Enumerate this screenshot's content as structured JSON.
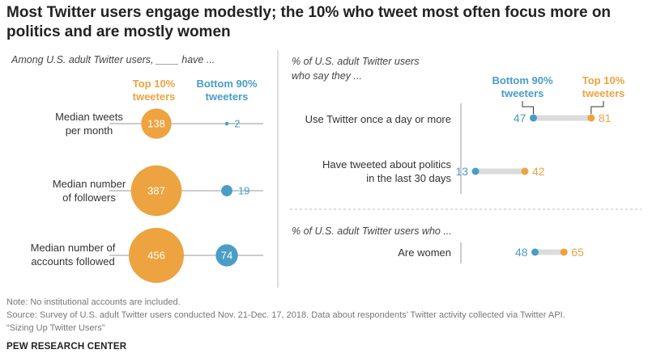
{
  "title": "Most Twitter users engage modestly; the 10% who tweet most often focus more on politics and are mostly women",
  "colors": {
    "top": "#EDA340",
    "bottom": "#4A9DC6",
    "track": "#DCDCDC",
    "axis": "#9A9A9A",
    "note": "#777777"
  },
  "left_panel": {
    "subtitle": "Among U.S. adult Twitter users, ____ have ...",
    "col_top": [
      "Top 10%",
      "tweeters"
    ],
    "col_bottom": [
      "Bottom 90%",
      "tweeters"
    ],
    "rows": [
      {
        "label": [
          "Median tweets",
          "per month"
        ],
        "top": 138,
        "bottom": 2
      },
      {
        "label": [
          "Median number",
          "of followers"
        ],
        "top": 387,
        "bottom": 19
      },
      {
        "label": [
          "Median number of",
          "accounts followed"
        ],
        "top": 456,
        "bottom": 74
      }
    ]
  },
  "right_panel": {
    "subtitle": [
      "% of U.S. adult Twitter users",
      "who say they ..."
    ],
    "legend_bottom": [
      "Bottom 90%",
      "tweeters"
    ],
    "legend_top": [
      "Top 10%",
      "tweeters"
    ],
    "rows": [
      {
        "label": [
          "Use Twitter once a day or more"
        ],
        "bottom": 47,
        "top": 81
      },
      {
        "label": [
          "Have tweeted about politics",
          "in the last 30 days"
        ],
        "bottom": 13,
        "top": 42
      }
    ],
    "subtitle2": "% of U.S. adult Twitter users who ...",
    "rows2": [
      {
        "label": [
          "Are women"
        ],
        "bottom": 48,
        "top": 65
      }
    ]
  },
  "chart_data": [
    {
      "type": "scatter",
      "title": "Among U.S. adult Twitter users, ____ have ...",
      "categories": [
        "Median tweets per month",
        "Median number of followers",
        "Median number of accounts followed"
      ],
      "series": [
        {
          "name": "Top 10% tweeters",
          "values": [
            138,
            387,
            456
          ]
        },
        {
          "name": "Bottom 90% tweeters",
          "values": [
            2,
            19,
            74
          ]
        }
      ]
    },
    {
      "type": "scatter",
      "title": "% of U.S. adult Twitter users who say they ...",
      "categories": [
        "Use Twitter once a day or more",
        "Have tweeted about politics in the last 30 days"
      ],
      "series": [
        {
          "name": "Bottom 90% tweeters",
          "values": [
            47,
            13
          ]
        },
        {
          "name": "Top 10% tweeters",
          "values": [
            81,
            42
          ]
        }
      ],
      "xlim": [
        0,
        100
      ]
    },
    {
      "type": "scatter",
      "title": "% of U.S. adult Twitter users who ...",
      "categories": [
        "Are women"
      ],
      "series": [
        {
          "name": "Bottom 90% tweeters",
          "values": [
            48
          ]
        },
        {
          "name": "Top 10% tweeters",
          "values": [
            65
          ]
        }
      ],
      "xlim": [
        0,
        100
      ]
    }
  ],
  "footer": {
    "note": "Note: No institutional accounts are included.",
    "source": "Source: Survey of U.S. adult Twitter users conducted Nov. 21-Dec. 17, 2018. Data about respondents’ Twitter activity collected via Twitter API.",
    "report": "“Sizing Up Twitter Users”",
    "brand": "PEW RESEARCH CENTER"
  }
}
